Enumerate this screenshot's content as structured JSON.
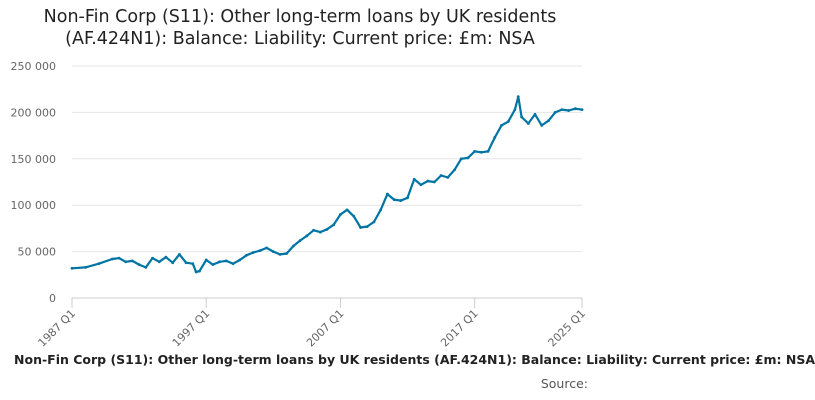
{
  "chart_data": {
    "type": "line",
    "title_lines": [
      "Non-Fin Corp (S11): Other long-term loans by UK residents",
      "(AF.424N1): Balance: Liability: Current price: £m: NSA"
    ],
    "xlabel": "",
    "ylabel": "",
    "ylim": [
      0,
      250000
    ],
    "yticks": [
      0,
      50000,
      100000,
      150000,
      200000,
      250000
    ],
    "ytick_labels": [
      "0",
      "50 000",
      "100 000",
      "150 000",
      "200 000",
      "250 000"
    ],
    "xlim": [
      1987.0,
      2025.0
    ],
    "xticks": [
      1987.0,
      1997.0,
      2007.0,
      2017.0,
      2025.0
    ],
    "xtick_labels": [
      "1987 Q1",
      "1997 Q1",
      "2007 Q1",
      "2017 Q1",
      "2025 Q1"
    ],
    "grid": "horizontal",
    "legend_position": "bottom",
    "line_color": "#0075A3",
    "series": [
      {
        "name": "Non-Fin Corp (S11): Other long-term loans by UK residents (AF.424N1): Balance: Liability: Current price: £m: NSA",
        "x": [
          1987.0,
          1988.0,
          1989.0,
          1990.0,
          1990.5,
          1991.0,
          1991.5,
          1992.0,
          1992.5,
          1993.0,
          1993.5,
          1994.0,
          1994.5,
          1995.0,
          1995.5,
          1996.0,
          1996.25,
          1996.5,
          1997.0,
          1997.5,
          1998.0,
          1998.5,
          1999.0,
          1999.5,
          2000.0,
          2000.5,
          2001.0,
          2001.5,
          2002.0,
          2002.5,
          2003.0,
          2003.5,
          2004.0,
          2004.5,
          2005.0,
          2005.5,
          2006.0,
          2006.5,
          2007.0,
          2007.5,
          2008.0,
          2008.5,
          2009.0,
          2009.5,
          2010.0,
          2010.5,
          2011.0,
          2011.5,
          2012.0,
          2012.5,
          2013.0,
          2013.5,
          2014.0,
          2014.5,
          2015.0,
          2015.5,
          2016.0,
          2016.5,
          2017.0,
          2017.5,
          2018.0,
          2018.5,
          2019.0,
          2019.5,
          2020.0,
          2020.25,
          2020.5,
          2021.0,
          2021.5,
          2022.0,
          2022.5,
          2023.0,
          2023.5,
          2024.0,
          2024.5,
          2025.0
        ],
        "values": [
          32000,
          33000,
          37000,
          42000,
          43000,
          39000,
          40000,
          36000,
          33000,
          43000,
          39000,
          44000,
          38000,
          47000,
          38000,
          37000,
          28000,
          29000,
          41000,
          36000,
          39000,
          40000,
          37000,
          41000,
          46000,
          49000,
          51000,
          54000,
          50000,
          47000,
          48000,
          56000,
          62000,
          67000,
          73000,
          71000,
          74000,
          79000,
          90000,
          95000,
          88000,
          76000,
          77000,
          82000,
          95000,
          112000,
          106000,
          105000,
          108000,
          128000,
          122000,
          126000,
          125000,
          132000,
          130000,
          138000,
          150000,
          151000,
          158000,
          157000,
          158000,
          173000,
          186000,
          190000,
          203000,
          217000,
          195000,
          188000,
          198000,
          186000,
          191000,
          200000,
          203000,
          202000,
          204000,
          203000
        ]
      }
    ]
  },
  "footer": {
    "legend_label": "Non-Fin Corp (S11): Other long-term loans by UK residents (AF.424N1): Balance: Liability: Current price: £m: NSA",
    "source_label": "Source:"
  }
}
